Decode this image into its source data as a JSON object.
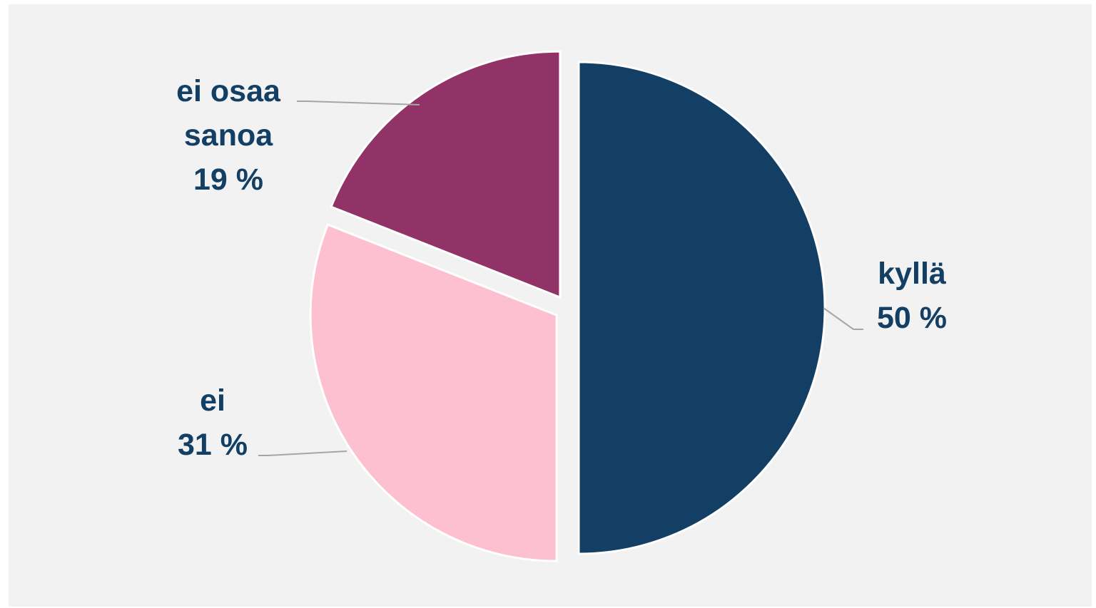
{
  "chart_data": {
    "type": "pie",
    "title": "",
    "slices": [
      {
        "label": "kyllä",
        "value": 50,
        "value_label": "50 %",
        "color": "#123f63"
      },
      {
        "label": "ei",
        "value": 31,
        "value_label": "31 %",
        "color": "#fdc0d0"
      },
      {
        "label": "ei osaa sanoa",
        "value": 19,
        "value_label": "19 %",
        "color": "#913366"
      }
    ],
    "legend": "none",
    "label_color": "#123f63",
    "leader_line_color": "#a6a6a6"
  }
}
